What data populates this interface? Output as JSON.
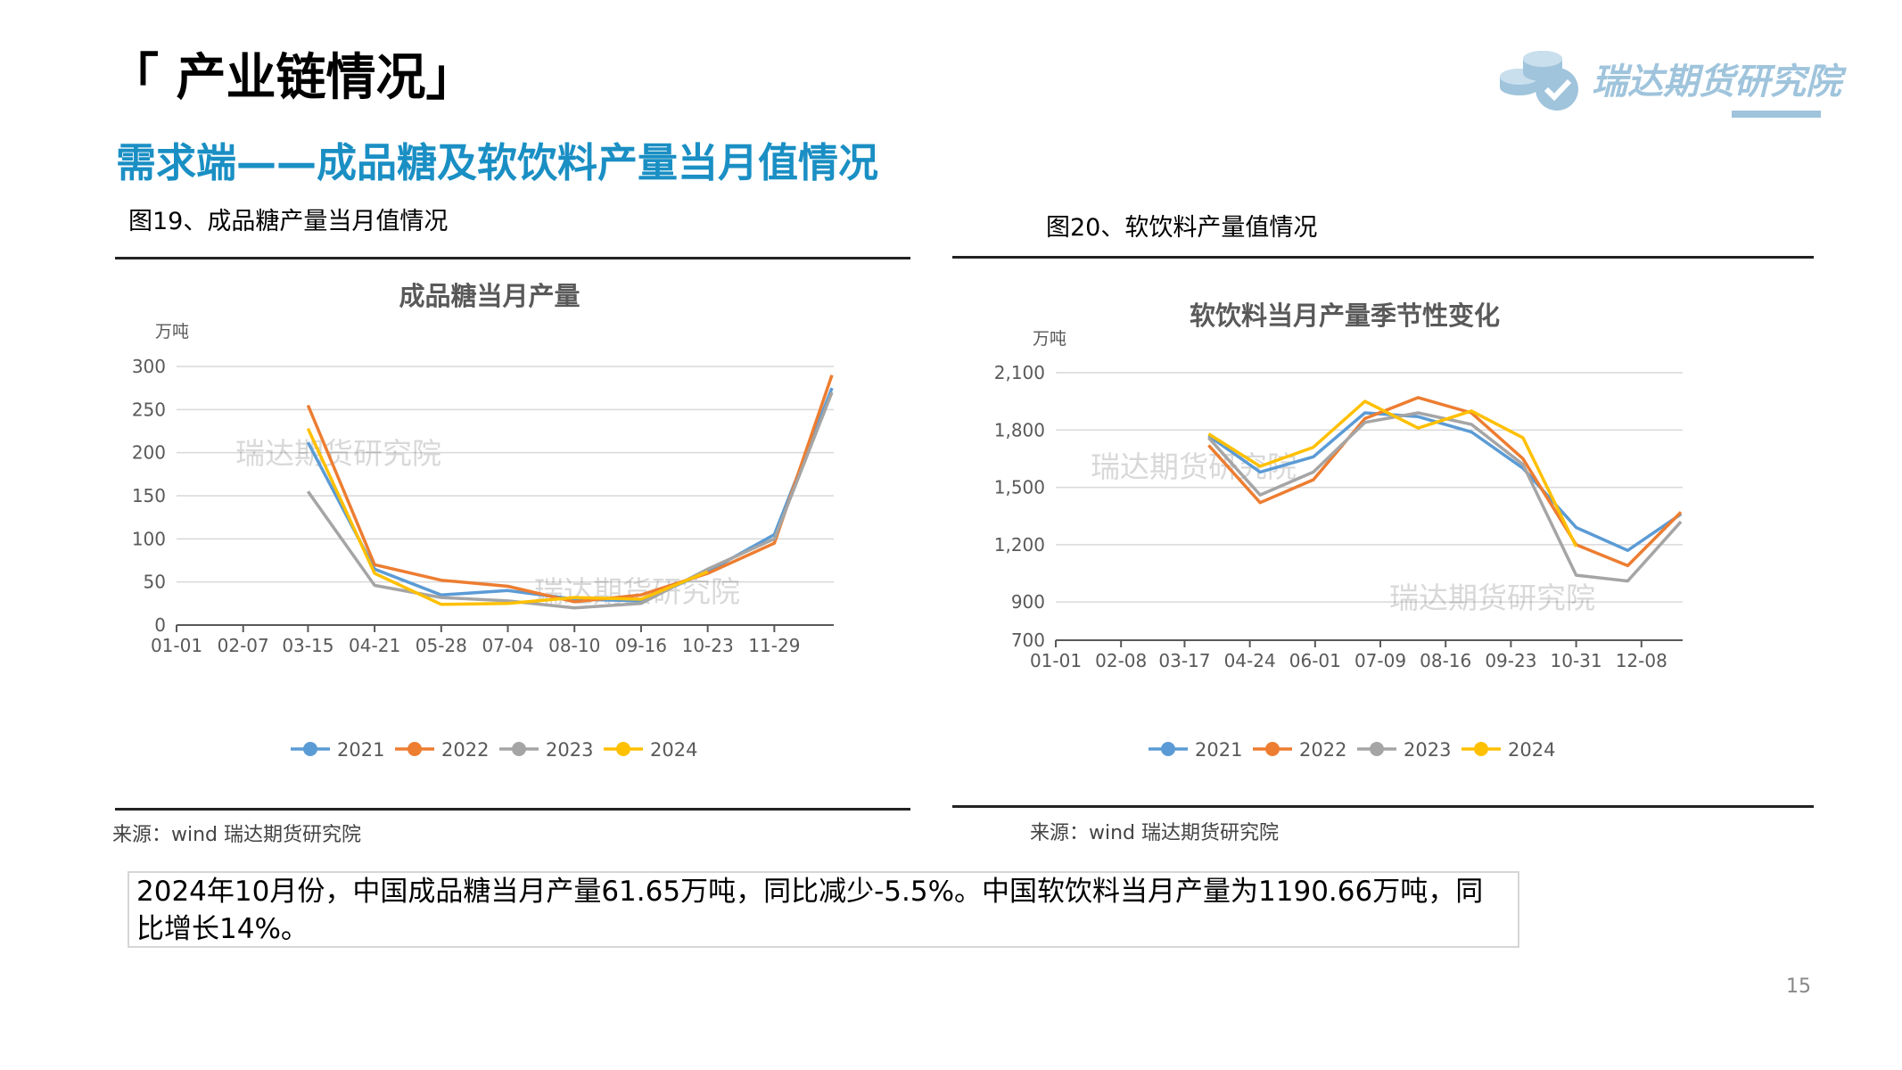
{
  "header": {
    "section_title": "「 产业链情况」",
    "subtitle": "需求端——成品糖及软饮料产量当月值情况",
    "logo_text": "瑞达期货研究院"
  },
  "left_figure": {
    "caption": "图19、成品糖产量当月值情况",
    "source": "来源：wind    瑞达期货研究院",
    "watermarks": [
      "瑞达期货研究院",
      "瑞达期货研究院"
    ]
  },
  "right_figure": {
    "caption": "图20、软饮料产量值情况",
    "source": "来源：wind    瑞达期货研究院",
    "watermarks": [
      "瑞达期货研究院",
      "瑞达期货研究院"
    ]
  },
  "summary": "2024年10月份，中国成品糖当月产量61.65万吨，同比减少-5.5%。中国软饮料当月产量为1190.66万吨，同比增长14%。",
  "page_number": "15",
  "colors": {
    "2021": "#5b9bd5",
    "2022": "#ed7d31",
    "2023": "#a5a5a5",
    "2024": "#ffc000",
    "accent": "#1a8fc4",
    "logo": "#9fc4dc"
  },
  "chart_data": [
    {
      "type": "line",
      "title": "成品糖当月产量",
      "ylabel": "万吨",
      "ylim": [
        0,
        300
      ],
      "yticks": [
        "0",
        "50",
        "100",
        "150",
        "200",
        "250",
        "300"
      ],
      "xticks": [
        "01-01",
        "02-07",
        "03-15",
        "04-21",
        "05-28",
        "07-04",
        "08-10",
        "09-16",
        "10-23",
        "11-29"
      ],
      "grid": true,
      "legend": "bottom",
      "series": [
        {
          "name": "2021",
          "x": [
            "03-15",
            "04-21",
            "05-28",
            "07-04",
            "08-10",
            "09-16",
            "10-23",
            "11-29",
            "12-31"
          ],
          "values": [
            212,
            65,
            35,
            40,
            30,
            28,
            62,
            105,
            275
          ]
        },
        {
          "name": "2022",
          "x": [
            "03-15",
            "04-21",
            "05-28",
            "07-04",
            "08-10",
            "09-16",
            "10-23",
            "11-29",
            "12-31"
          ],
          "values": [
            255,
            70,
            52,
            45,
            27,
            35,
            60,
            95,
            290
          ]
        },
        {
          "name": "2023",
          "x": [
            "03-15",
            "04-21",
            "05-28",
            "07-04",
            "08-10",
            "09-16",
            "10-23",
            "11-29",
            "12-31"
          ],
          "values": [
            155,
            46,
            32,
            28,
            20,
            25,
            65,
            100,
            270
          ]
        },
        {
          "name": "2024",
          "x": [
            "03-15",
            "04-21",
            "05-28",
            "07-04",
            "08-10",
            "09-16",
            "10-23"
          ],
          "values": [
            228,
            60,
            24,
            25,
            32,
            30,
            62
          ]
        }
      ]
    },
    {
      "type": "line",
      "title": "软饮料当月产量季节性变化",
      "ylabel": "万吨",
      "ylim": [
        700,
        2100
      ],
      "yticks": [
        "700",
        "900",
        "1,200",
        "1,500",
        "1,800",
        "2,100"
      ],
      "xticks": [
        "01-01",
        "02-08",
        "03-17",
        "04-24",
        "06-01",
        "07-09",
        "08-16",
        "09-23",
        "10-31",
        "12-08"
      ],
      "grid": true,
      "legend": "bottom",
      "series": [
        {
          "name": "2021",
          "x": [
            "03-31",
            "04-30",
            "05-31",
            "06-30",
            "07-31",
            "08-31",
            "09-30",
            "10-31",
            "11-30",
            "12-31"
          ],
          "values": [
            1770,
            1580,
            1660,
            1890,
            1870,
            1790,
            1600,
            1290,
            1170,
            1360
          ]
        },
        {
          "name": "2022",
          "x": [
            "03-31",
            "04-30",
            "05-31",
            "06-30",
            "07-31",
            "08-31",
            "09-30",
            "10-31",
            "11-30",
            "12-31"
          ],
          "values": [
            1720,
            1420,
            1540,
            1860,
            1970,
            1890,
            1650,
            1200,
            1090,
            1370
          ]
        },
        {
          "name": "2023",
          "x": [
            "03-31",
            "04-30",
            "05-31",
            "06-30",
            "07-31",
            "08-31",
            "09-30",
            "10-31",
            "11-30",
            "12-31"
          ],
          "values": [
            1760,
            1460,
            1580,
            1840,
            1890,
            1830,
            1620,
            1040,
            1010,
            1320
          ]
        },
        {
          "name": "2024",
          "x": [
            "03-31",
            "04-30",
            "05-31",
            "06-30",
            "07-31",
            "08-31",
            "09-30",
            "10-31"
          ],
          "values": [
            1780,
            1610,
            1710,
            1950,
            1810,
            1900,
            1760,
            1190
          ]
        }
      ]
    }
  ]
}
